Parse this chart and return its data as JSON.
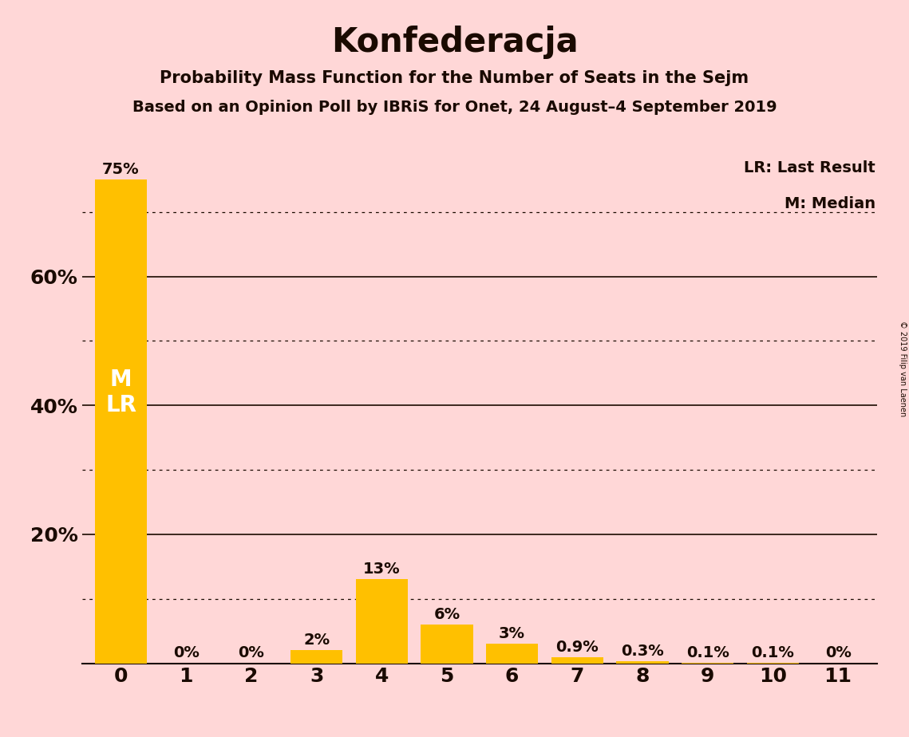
{
  "title": "Konfederacja",
  "subtitle1": "Probability Mass Function for the Number of Seats in the Sejm",
  "subtitle2": "Based on an Opinion Poll by IBRiS for Onet, 24 August–4 September 2019",
  "copyright": "© 2019 Filip van Laenen",
  "categories": [
    0,
    1,
    2,
    3,
    4,
    5,
    6,
    7,
    8,
    9,
    10,
    11
  ],
  "values": [
    0.75,
    0.0,
    0.0,
    0.02,
    0.13,
    0.06,
    0.03,
    0.009,
    0.003,
    0.001,
    0.001,
    0.0
  ],
  "bar_labels": [
    "75%",
    "0%",
    "0%",
    "2%",
    "13%",
    "6%",
    "3%",
    "0.9%",
    "0.3%",
    "0.1%",
    "0.1%",
    "0%"
  ],
  "bar_color": "#FFC000",
  "background_color": "#FFD7D7",
  "text_color": "#1a0a00",
  "legend_lr": "LR: Last Result",
  "legend_m": "M: Median",
  "ylim_max": 0.8,
  "solid_gridlines": [
    0.2,
    0.4,
    0.6
  ],
  "dotted_gridlines": [
    0.1,
    0.3,
    0.5,
    0.7
  ],
  "ytick_positions": [
    0.2,
    0.4,
    0.6
  ],
  "ytick_labels": [
    "20%",
    "40%",
    "60%"
  ]
}
